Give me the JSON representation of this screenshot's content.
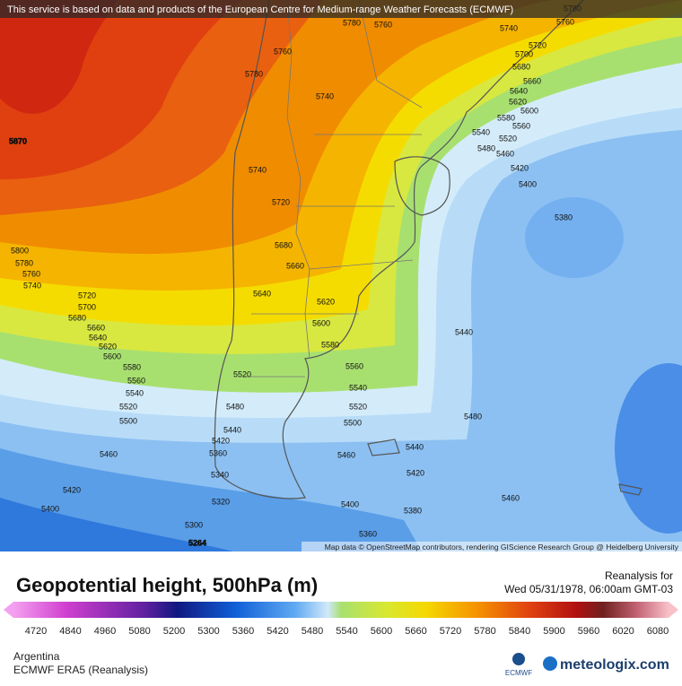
{
  "header": {
    "notice": "This service is based on data and products of the European Centre for Medium-range Weather Forecasts (ECMWF)"
  },
  "map": {
    "attribution": "Map data © OpenStreetMap contributors, rendering GIScience Research Group @ Heidelberg University",
    "labels": [
      5870,
      5264,
      5780,
      5760,
      5760,
      5760,
      5780,
      5780,
      5740,
      5740,
      5740,
      5740,
      5720,
      5720,
      5720,
      5700,
      5700,
      5680,
      5680,
      5680,
      5660,
      5660,
      5660,
      5640,
      5640,
      5640,
      5620,
      5620,
      5620,
      5600,
      5600,
      5600,
      5580,
      5580,
      5580,
      5560,
      5560,
      5560,
      5540,
      5540,
      5540,
      5520,
      5520,
      5520,
      5520,
      5500,
      5500,
      5480,
      5480,
      5480,
      5460,
      5460,
      5460,
      5460,
      5440,
      5440,
      5440,
      5420,
      5420,
      5420,
      5420,
      5400,
      5400,
      5400,
      5380,
      5380,
      5360,
      5360,
      5340,
      5320,
      5300,
      5800,
      5780,
      5760
    ]
  },
  "legend": {
    "title": "Geopotential height, 500hPa (m)",
    "run_label": "Reanalysis for",
    "valid_time": "Wed 05/31/1978, 06:00am GMT-03",
    "ticks": [
      4720,
      4840,
      4960,
      5080,
      5200,
      5300,
      5360,
      5420,
      5480,
      5540,
      5600,
      5660,
      5720,
      5780,
      5840,
      5900,
      5960,
      6020,
      6080
    ]
  },
  "footer": {
    "region": "Argentina",
    "model": "ECMWF ERA5 (Reanalysis)",
    "ecmwf_logo": "ECMWF",
    "brand": "meteologix.com"
  }
}
